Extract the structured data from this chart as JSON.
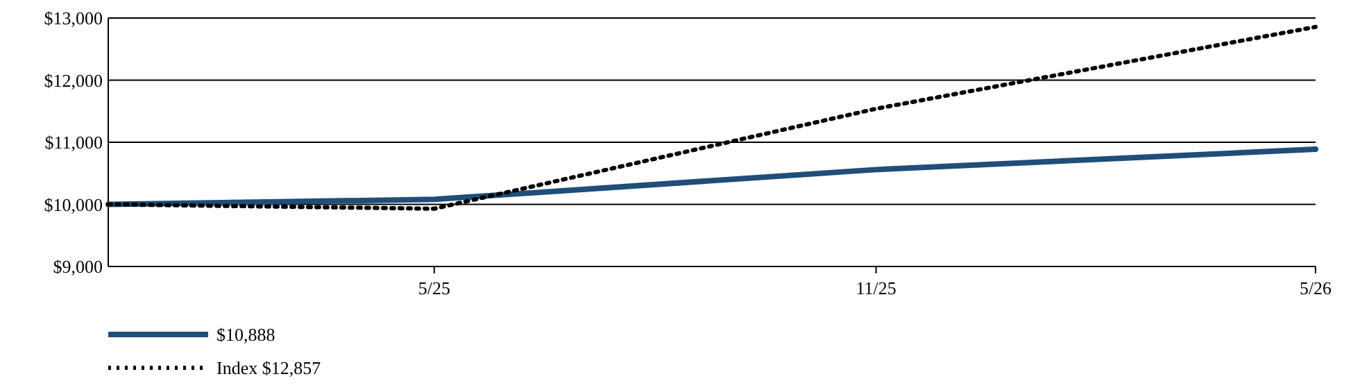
{
  "chart_data": {
    "type": "line",
    "x": [
      "2025-01-16",
      "2025-05-31",
      "2025-11-30",
      "2026-05-31"
    ],
    "series": [
      {
        "color": "#1f4e79",
        "values": [
          10000,
          10080,
          10560,
          10888
        ],
        "line_style": "solid"
      },
      {
        "color": "#000000",
        "values": [
          10000,
          9930,
          11540,
          12857
        ],
        "line_style": "dotted"
      }
    ],
    "annotations": [
      "$10,888",
      "Index $12,857"
    ],
    "xlim": [
      "2025-01-16",
      "2026-05-31"
    ],
    "xticks": [
      {
        "value": "2025-05-31",
        "label": "5/25"
      },
      {
        "value": "2025-11-30",
        "label": "11/25"
      },
      {
        "value": "2026-05-31",
        "label": "5/26"
      }
    ],
    "ylim": [
      9000,
      13000
    ],
    "yticks": [
      {
        "value": 9000,
        "label": "$9,000"
      },
      {
        "value": 10000,
        "label": "$10,000"
      },
      {
        "value": 11000,
        "label": "$11,000"
      },
      {
        "value": 12000,
        "label": "$12,000"
      },
      {
        "value": 13000,
        "label": "$13,000"
      }
    ],
    "grid": "y",
    "marker": "none"
  }
}
